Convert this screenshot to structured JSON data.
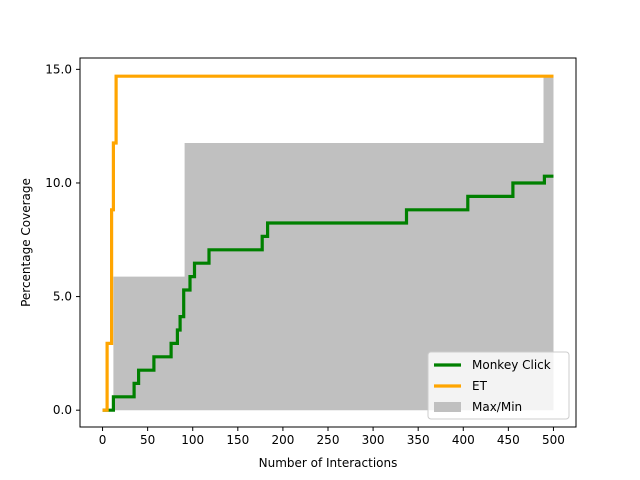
{
  "chart_data": {
    "type": "line",
    "title": "",
    "xlabel": "Number of Interactions",
    "ylabel": "Percentage Coverage",
    "xlim": [
      -25,
      525
    ],
    "ylim": [
      -0.74,
      15.5
    ],
    "xticks": [
      0,
      50,
      100,
      150,
      200,
      250,
      300,
      350,
      400,
      450,
      500
    ],
    "xtick_labels": [
      "0",
      "50",
      "100",
      "150",
      "200",
      "250",
      "300",
      "350",
      "400",
      "450",
      "500"
    ],
    "yticks": [
      0,
      5,
      10,
      15
    ],
    "ytick_labels": [
      "0.0",
      "5.0",
      "10.0",
      "15.0"
    ],
    "grid": false,
    "legend_position": "lower-right",
    "series": [
      {
        "name": "Monkey Click",
        "color": "#008000",
        "step": true,
        "x": [
          0,
          12,
          35,
          40,
          57,
          76,
          83,
          86,
          90,
          97,
          102,
          118,
          128,
          177,
          183,
          337,
          405,
          455,
          490,
          500
        ],
        "y": [
          0,
          0.59,
          1.18,
          1.76,
          2.35,
          2.94,
          3.53,
          4.12,
          5.29,
          5.88,
          6.47,
          7.06,
          7.06,
          7.65,
          8.24,
          8.82,
          9.41,
          10.0,
          10.3,
          10.3
        ]
      },
      {
        "name": "ET",
        "color": "#ffa500",
        "step": true,
        "x": [
          0,
          5,
          10,
          12,
          15,
          500
        ],
        "y": [
          0,
          2.94,
          8.82,
          11.76,
          14.7,
          14.7
        ]
      },
      {
        "name": "Max/Min",
        "color": "#c0c0c0",
        "type": "band",
        "x": [
          0,
          10,
          12,
          90,
          91,
          488,
          489,
          500
        ],
        "upper": [
          0,
          0,
          5.88,
          5.88,
          11.76,
          11.76,
          14.7,
          14.7
        ],
        "lower": [
          0,
          0,
          0,
          0,
          0,
          0,
          0,
          0
        ]
      }
    ]
  }
}
